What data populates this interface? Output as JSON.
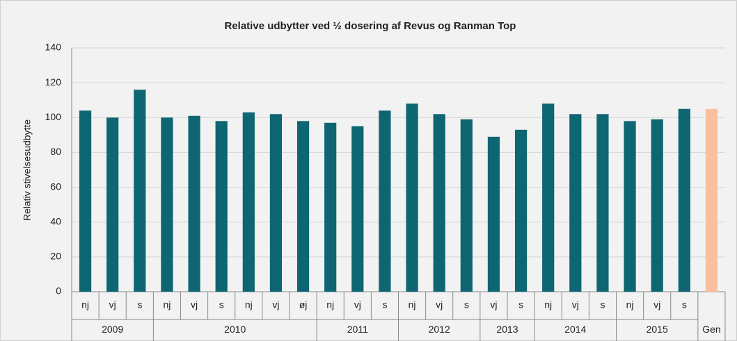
{
  "chart_data": {
    "type": "bar",
    "title": "Relative udbytter ved ½ dosering af Revus og Ranman Top",
    "y_label": "Relativ stivelsesudbytte",
    "groups": [
      {
        "label": "2009",
        "categories": [
          "nj",
          "vj",
          "s"
        ]
      },
      {
        "label": "2010",
        "categories": [
          "nj",
          "vj",
          "s",
          "nj",
          "vj",
          "øj"
        ]
      },
      {
        "label": "2011",
        "categories": [
          "nj",
          "vj",
          "s"
        ]
      },
      {
        "label": "2012",
        "categories": [
          "nj",
          "vj",
          "s"
        ]
      },
      {
        "label": "2013",
        "categories": [
          "vj",
          "s"
        ]
      },
      {
        "label": "2014",
        "categories": [
          "nj",
          "vj",
          "s"
        ]
      },
      {
        "label": "2015",
        "categories": [
          "nj",
          "vj",
          "s"
        ]
      },
      {
        "label": "Gen",
        "categories": [
          null
        ]
      }
    ],
    "values": [
      104,
      100,
      116,
      100,
      101,
      98,
      103,
      102,
      98,
      97,
      95,
      104,
      108,
      102,
      99,
      89,
      93,
      108,
      102,
      102,
      98,
      99,
      105,
      105
    ],
    "colors": [
      "#0e6672",
      "#0e6672",
      "#0e6672",
      "#0e6672",
      "#0e6672",
      "#0e6672",
      "#0e6672",
      "#0e6672",
      "#0e6672",
      "#0e6672",
      "#0e6672",
      "#0e6672",
      "#0e6672",
      "#0e6672",
      "#0e6672",
      "#0e6672",
      "#0e6672",
      "#0e6672",
      "#0e6672",
      "#0e6672",
      "#0e6672",
      "#0e6672",
      "#0e6672",
      "#f9c0a0"
    ],
    "ylim": [
      0,
      140
    ],
    "yticks": [
      0,
      20,
      40,
      60,
      80,
      100,
      120,
      140
    ],
    "grid": true
  }
}
